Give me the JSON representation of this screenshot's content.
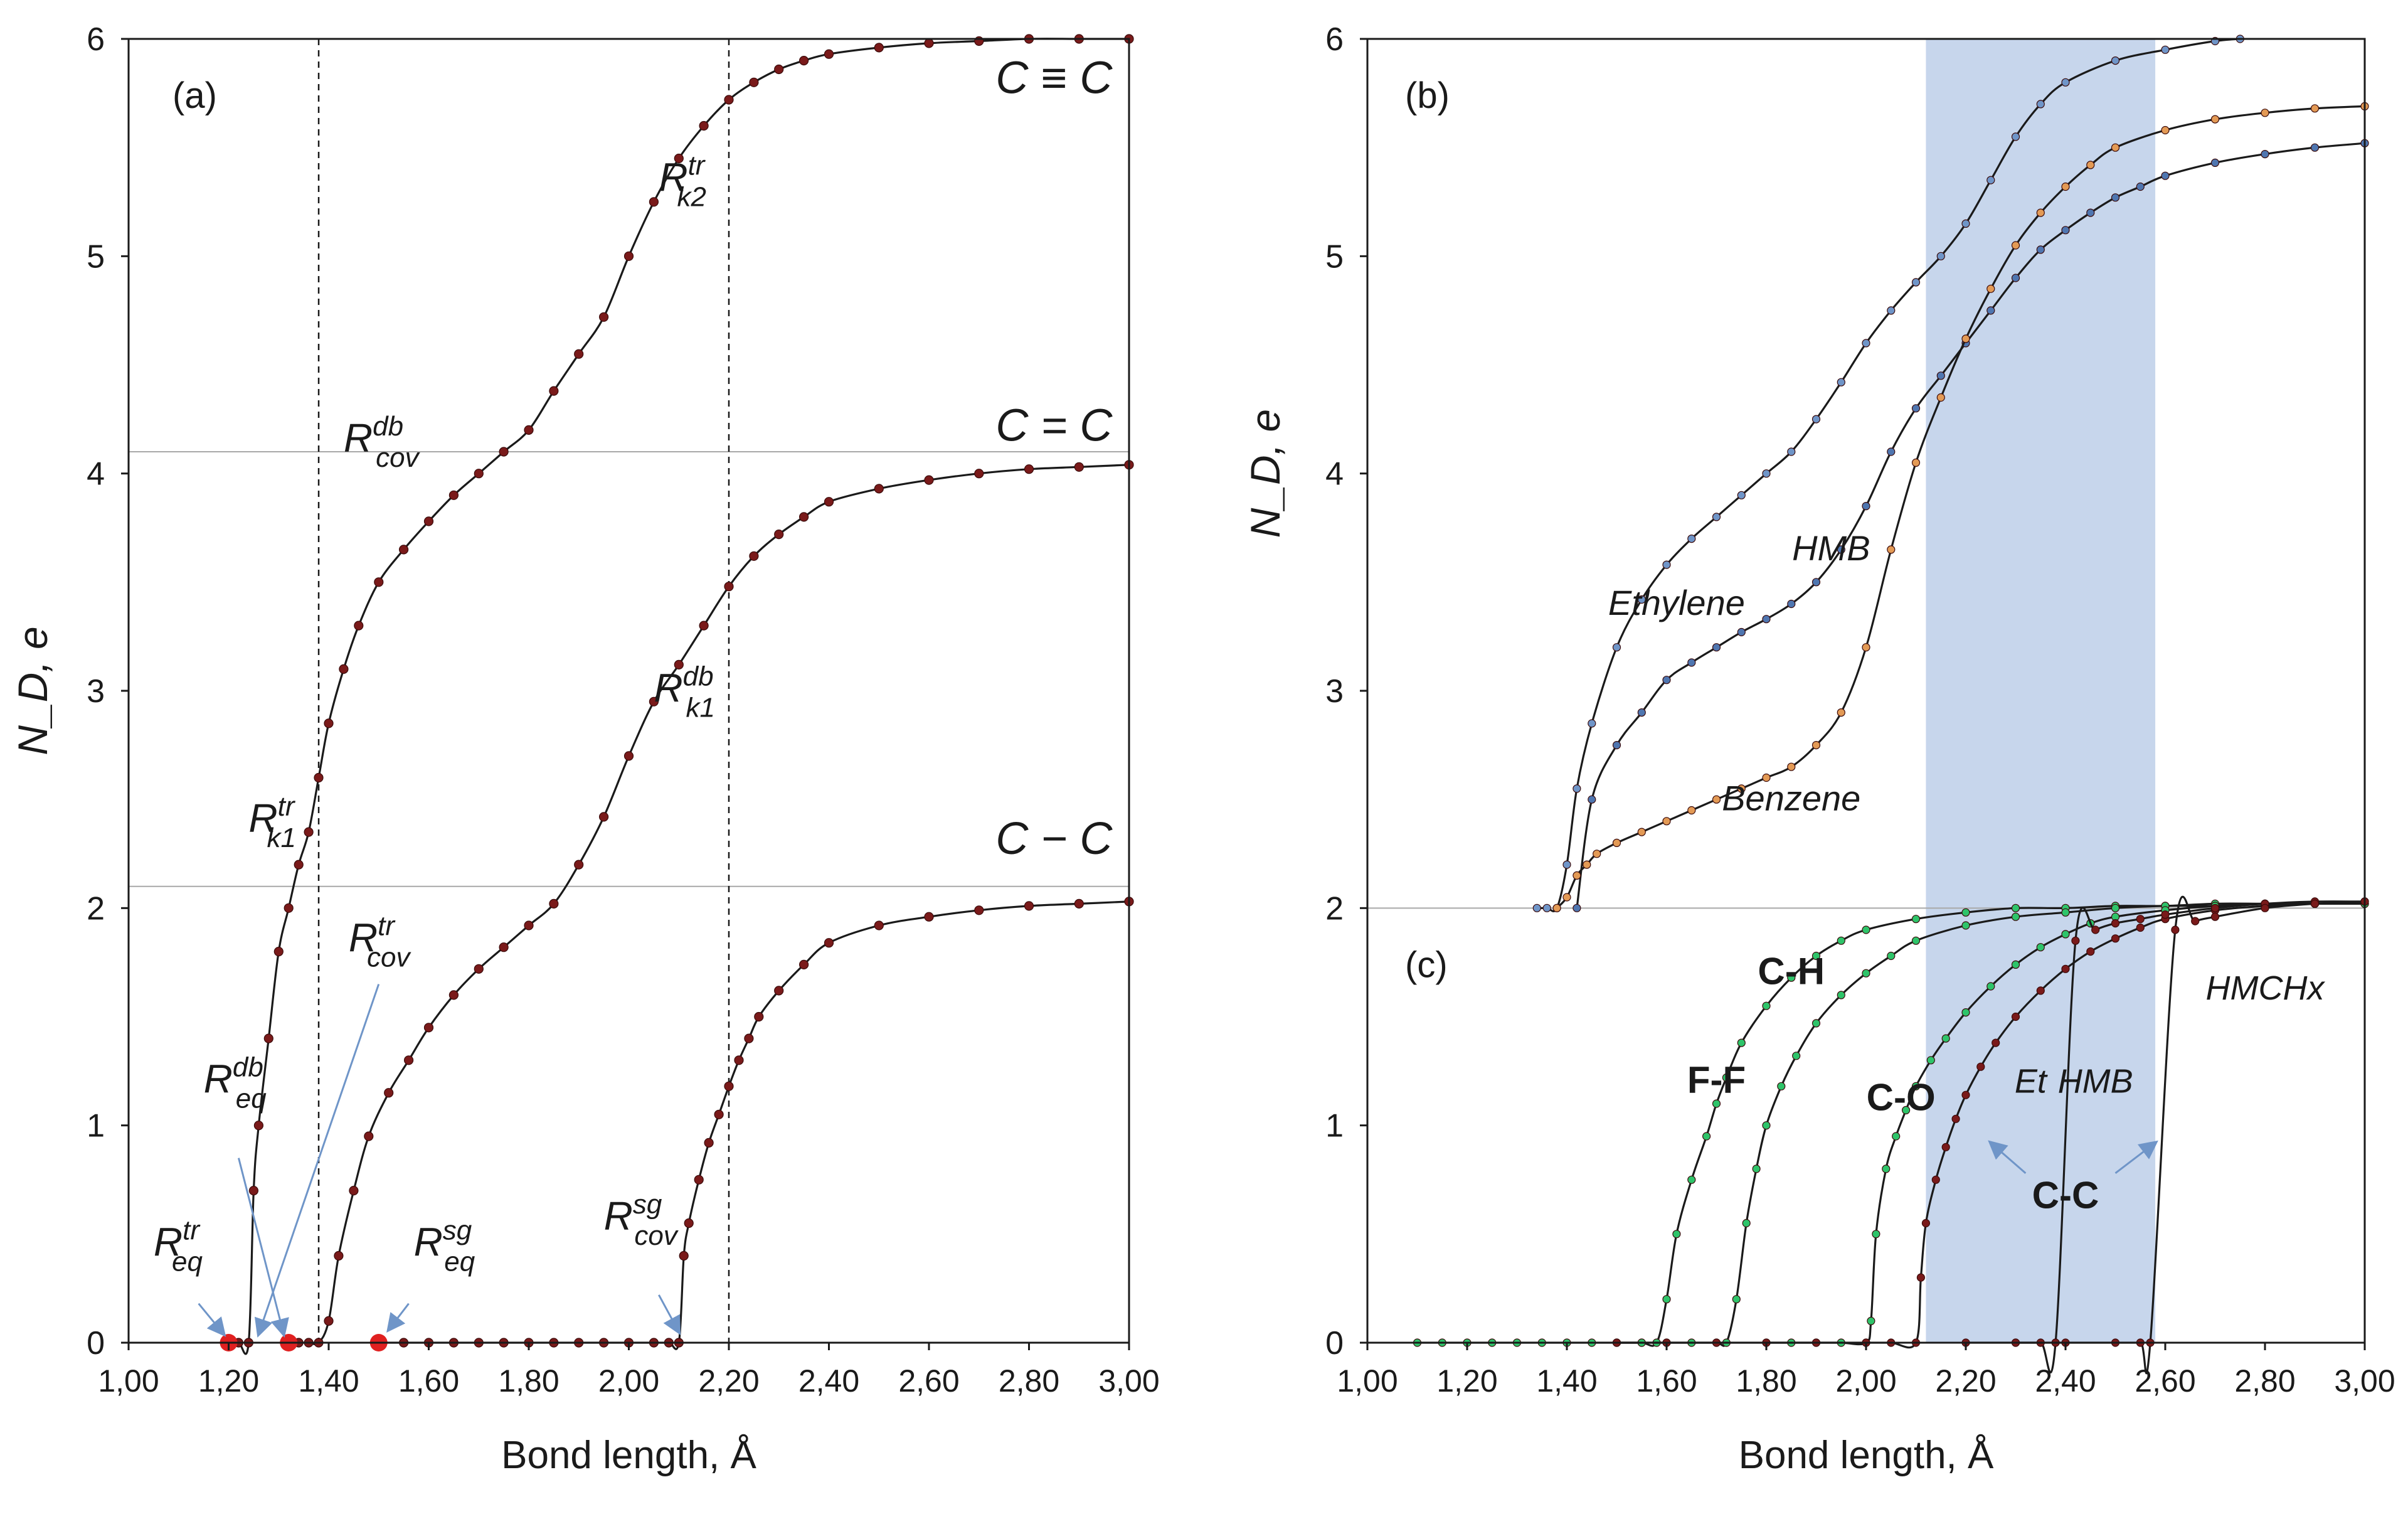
{
  "colors": {
    "curve": "#1a1a1a",
    "marker_dark_red": "#7a1a1a",
    "marker_red": "#e02020",
    "marker_orange": "#e39a55",
    "marker_blue": "#4f76b0",
    "marker_light_blue": "#6f95c8",
    "marker_green": "#2ec46a",
    "shade": "#c7d6ec",
    "guide": "#a8a8a8"
  },
  "chart_data": [
    {
      "id": "a",
      "type": "line",
      "panel_label": "(a)",
      "xlabel": "Bond length, Å",
      "ylabel": "N_D, e",
      "xlim": [
        1.0,
        3.0
      ],
      "ylim": [
        0,
        6
      ],
      "x_ticks": [
        "1,00",
        "1,20",
        "1,40",
        "1,60",
        "1,80",
        "2,00",
        "2,20",
        "2,40",
        "2,60",
        "2,80",
        "3,00"
      ],
      "y_ticks": [
        "0",
        "1",
        "2",
        "3",
        "4",
        "5",
        "6"
      ],
      "grid": false,
      "reference_lines": {
        "horizontal_y": [
          2.1,
          4.1
        ],
        "vertical_x": [
          1.38,
          2.2
        ]
      },
      "series": [
        {
          "name": "C ≡ C",
          "x": [
            1.2,
            1.22,
            1.24,
            1.25,
            1.26,
            1.28,
            1.3,
            1.32,
            1.34,
            1.36,
            1.38,
            1.4,
            1.43,
            1.46,
            1.5,
            1.55,
            1.6,
            1.65,
            1.7,
            1.75,
            1.8,
            1.85,
            1.9,
            1.95,
            2.0,
            2.05,
            2.1,
            2.15,
            2.2,
            2.25,
            2.3,
            2.35,
            2.4,
            2.5,
            2.6,
            2.7,
            2.8,
            2.9,
            3.0
          ],
          "y": [
            0,
            0,
            0,
            0.7,
            1.0,
            1.4,
            1.8,
            2.0,
            2.2,
            2.35,
            2.6,
            2.85,
            3.1,
            3.3,
            3.5,
            3.65,
            3.78,
            3.9,
            4.0,
            4.1,
            4.2,
            4.38,
            4.55,
            4.72,
            5.0,
            5.25,
            5.45,
            5.6,
            5.72,
            5.8,
            5.86,
            5.9,
            5.93,
            5.96,
            5.98,
            5.99,
            6.0,
            6.0,
            6.0
          ]
        },
        {
          "name": "C = C",
          "x": [
            1.32,
            1.34,
            1.36,
            1.38,
            1.4,
            1.42,
            1.45,
            1.48,
            1.52,
            1.56,
            1.6,
            1.65,
            1.7,
            1.75,
            1.8,
            1.85,
            1.9,
            1.95,
            2.0,
            2.05,
            2.1,
            2.15,
            2.2,
            2.25,
            2.3,
            2.35,
            2.4,
            2.5,
            2.6,
            2.7,
            2.8,
            2.9,
            3.0
          ],
          "y": [
            0,
            0,
            0,
            0,
            0.1,
            0.4,
            0.7,
            0.95,
            1.15,
            1.3,
            1.45,
            1.6,
            1.72,
            1.82,
            1.92,
            2.02,
            2.2,
            2.42,
            2.7,
            2.95,
            3.12,
            3.3,
            3.48,
            3.62,
            3.72,
            3.8,
            3.87,
            3.93,
            3.97,
            4.0,
            4.02,
            4.03,
            4.04
          ]
        },
        {
          "name": "C − C",
          "x": [
            1.5,
            1.55,
            1.6,
            1.65,
            1.7,
            1.75,
            1.8,
            1.85,
            1.9,
            1.95,
            2.0,
            2.05,
            2.08,
            2.1,
            2.11,
            2.12,
            2.14,
            2.16,
            2.18,
            2.2,
            2.22,
            2.24,
            2.26,
            2.3,
            2.35,
            2.4,
            2.5,
            2.6,
            2.7,
            2.8,
            2.9,
            3.0
          ],
          "y": [
            0,
            0,
            0,
            0,
            0,
            0,
            0,
            0,
            0,
            0,
            0,
            0,
            0,
            0,
            0.4,
            0.55,
            0.75,
            0.92,
            1.05,
            1.18,
            1.3,
            1.4,
            1.5,
            1.62,
            1.74,
            1.84,
            1.92,
            1.96,
            1.99,
            2.01,
            2.02,
            2.03
          ]
        }
      ],
      "highlight_points": {
        "x": [
          1.2,
          1.32,
          1.5
        ],
        "y": [
          0,
          0,
          0
        ]
      },
      "annotations": [
        {
          "text": "C ≡ C",
          "x": 2.85,
          "y": 5.75
        },
        {
          "text": "C = C",
          "x": 2.85,
          "y": 4.15
        },
        {
          "text": "C − C",
          "x": 2.85,
          "y": 2.25
        },
        {
          "text": "R",
          "sup": "tr",
          "sub": "k2",
          "x": 2.06,
          "y": 5.3
        },
        {
          "text": "R",
          "sup": "db",
          "sub": "cov",
          "x": 1.43,
          "y": 4.1
        },
        {
          "text": "R",
          "sup": "db",
          "sub": "k1",
          "x": 2.05,
          "y": 2.95
        },
        {
          "text": "R",
          "sup": "tr",
          "sub": "k1",
          "x": 1.24,
          "y": 2.35
        },
        {
          "text": "R",
          "sup": "tr",
          "sub": "cov",
          "x": 1.44,
          "y": 1.8
        },
        {
          "text": "R",
          "sup": "db",
          "sub": "eq",
          "x": 1.15,
          "y": 1.15
        },
        {
          "text": "R",
          "sup": "tr",
          "sub": "eq",
          "x": 1.05,
          "y": 0.4
        },
        {
          "text": "R",
          "sup": "sg",
          "sub": "eq",
          "x": 1.57,
          "y": 0.4
        },
        {
          "text": "R",
          "sup": "sg",
          "sub": "cov",
          "x": 1.95,
          "y": 0.52
        }
      ]
    },
    {
      "id": "b",
      "type": "line",
      "panel_label": "(b)",
      "xlabel": "",
      "ylabel": "N_D, e",
      "xlim": [
        1.0,
        3.0
      ],
      "ylim": [
        2,
        6
      ],
      "y_ticks": [
        "2",
        "3",
        "4",
        "5",
        "6"
      ],
      "shaded_x_range": [
        2.12,
        2.58
      ],
      "series": [
        {
          "name": "Ethylene",
          "x": [
            1.34,
            1.36,
            1.38,
            1.4,
            1.42,
            1.45,
            1.5,
            1.55,
            1.6,
            1.65,
            1.7,
            1.75,
            1.8,
            1.85,
            1.9,
            1.95,
            2.0,
            2.05,
            2.1,
            2.15,
            2.2,
            2.25,
            2.3,
            2.35,
            2.4,
            2.5,
            2.6,
            2.7,
            2.75
          ],
          "y": [
            2.0,
            2.0,
            2.0,
            2.2,
            2.55,
            2.85,
            3.2,
            3.42,
            3.58,
            3.7,
            3.8,
            3.9,
            4.0,
            4.1,
            4.25,
            4.42,
            4.6,
            4.75,
            4.88,
            5.0,
            5.15,
            5.35,
            5.55,
            5.7,
            5.8,
            5.9,
            5.95,
            5.99,
            6.0
          ]
        },
        {
          "name": "HMB",
          "x": [
            1.42,
            1.45,
            1.5,
            1.55,
            1.6,
            1.65,
            1.7,
            1.75,
            1.8,
            1.85,
            1.9,
            1.95,
            2.0,
            2.05,
            2.1,
            2.15,
            2.2,
            2.25,
            2.3,
            2.35,
            2.4,
            2.45,
            2.5,
            2.55,
            2.6,
            2.7,
            2.8,
            2.9,
            3.0
          ],
          "y": [
            2.0,
            2.5,
            2.75,
            2.9,
            3.05,
            3.13,
            3.2,
            3.27,
            3.33,
            3.4,
            3.5,
            3.65,
            3.85,
            4.1,
            4.3,
            4.45,
            4.6,
            4.75,
            4.9,
            5.03,
            5.12,
            5.2,
            5.27,
            5.32,
            5.37,
            5.43,
            5.47,
            5.5,
            5.52
          ]
        },
        {
          "name": "Benzene",
          "x": [
            1.38,
            1.4,
            1.42,
            1.44,
            1.46,
            1.5,
            1.55,
            1.6,
            1.65,
            1.7,
            1.75,
            1.8,
            1.85,
            1.9,
            1.95,
            2.0,
            2.05,
            2.1,
            2.15,
            2.2,
            2.25,
            2.3,
            2.35,
            2.4,
            2.45,
            2.5,
            2.6,
            2.7,
            2.8,
            2.9,
            3.0
          ],
          "y": [
            2.0,
            2.05,
            2.15,
            2.2,
            2.25,
            2.3,
            2.35,
            2.4,
            2.45,
            2.5,
            2.55,
            2.6,
            2.65,
            2.75,
            2.9,
            3.2,
            3.65,
            4.05,
            4.35,
            4.62,
            4.85,
            5.05,
            5.2,
            5.32,
            5.42,
            5.5,
            5.58,
            5.63,
            5.66,
            5.68,
            5.69
          ]
        }
      ],
      "annotations": [
        {
          "text": "Ethylene",
          "x": 1.62,
          "y": 3.35
        },
        {
          "text": "HMB",
          "x": 1.93,
          "y": 3.6
        },
        {
          "text": "Benzene",
          "x": 1.85,
          "y": 2.45
        }
      ]
    },
    {
      "id": "c",
      "type": "line",
      "panel_label": "(c)",
      "xlabel": "Bond length, Å",
      "ylabel": "",
      "xlim": [
        1.0,
        3.0
      ],
      "ylim": [
        0,
        2
      ],
      "x_ticks": [
        "1,00",
        "1,20",
        "1,40",
        "1,60",
        "1,80",
        "2,00",
        "2,20",
        "2,40",
        "2,60",
        "2,80",
        "3,00"
      ],
      "y_ticks": [
        "0",
        "1"
      ],
      "shaded_x_range": [
        2.12,
        2.58
      ],
      "series": [
        {
          "name": "F-F",
          "x": [
            1.1,
            1.15,
            1.2,
            1.25,
            1.3,
            1.35,
            1.4,
            1.45,
            1.5,
            1.55,
            1.58,
            1.6,
            1.62,
            1.65,
            1.68,
            1.7,
            1.72,
            1.75,
            1.8,
            1.85,
            1.9,
            1.95,
            2.0,
            2.1,
            2.2,
            2.3,
            2.4,
            2.5,
            2.6,
            2.7,
            2.8,
            2.9,
            3.0
          ],
          "y": [
            0,
            0,
            0,
            0,
            0,
            0,
            0,
            0,
            0,
            0,
            0,
            0.2,
            0.5,
            0.75,
            0.95,
            1.1,
            1.22,
            1.38,
            1.55,
            1.68,
            1.78,
            1.85,
            1.9,
            1.95,
            1.98,
            2.0,
            2.0,
            2.01,
            2.01,
            2.02,
            2.02,
            2.02,
            2.02
          ]
        },
        {
          "name": "C-H",
          "x": [
            1.5,
            1.55,
            1.6,
            1.65,
            1.7,
            1.72,
            1.74,
            1.76,
            1.78,
            1.8,
            1.83,
            1.86,
            1.9,
            1.95,
            2.0,
            2.05,
            2.1,
            2.2,
            2.3,
            2.4,
            2.5,
            2.6,
            2.7,
            2.8,
            2.9,
            3.0
          ],
          "y": [
            0,
            0,
            0,
            0,
            0,
            0,
            0.2,
            0.55,
            0.8,
            1.0,
            1.18,
            1.32,
            1.47,
            1.6,
            1.7,
            1.78,
            1.85,
            1.92,
            1.96,
            1.98,
            2.0,
            2.01,
            2.01,
            2.02,
            2.02,
            2.02
          ]
        },
        {
          "name": "C-O",
          "x": [
            1.8,
            1.85,
            1.9,
            1.95,
            2.0,
            2.01,
            2.02,
            2.04,
            2.06,
            2.08,
            2.1,
            2.13,
            2.16,
            2.2,
            2.25,
            2.3,
            2.35,
            2.4,
            2.45,
            2.5,
            2.6,
            2.7,
            2.8,
            2.9,
            3.0
          ],
          "y": [
            0,
            0,
            0,
            0,
            0,
            0.1,
            0.5,
            0.8,
            0.95,
            1.07,
            1.18,
            1.3,
            1.4,
            1.52,
            1.64,
            1.74,
            1.82,
            1.88,
            1.93,
            1.96,
            1.99,
            2.01,
            2.02,
            2.02,
            2.02
          ]
        },
        {
          "name": "Et",
          "x": [
            1.5,
            1.6,
            1.7,
            1.8,
            1.9,
            2.0,
            2.05,
            2.1,
            2.11,
            2.12,
            2.14,
            2.16,
            2.18,
            2.2,
            2.23,
            2.26,
            2.3,
            2.35,
            2.4,
            2.45,
            2.5,
            2.55,
            2.6,
            2.7,
            2.8,
            2.9,
            3.0
          ],
          "y": [
            0,
            0,
            0,
            0,
            0,
            0,
            0,
            0,
            0.3,
            0.55,
            0.75,
            0.9,
            1.03,
            1.14,
            1.27,
            1.38,
            1.5,
            1.62,
            1.72,
            1.8,
            1.86,
            1.91,
            1.95,
            1.99,
            2.01,
            2.02,
            2.03
          ]
        },
        {
          "name": "HMB",
          "x": [
            2.2,
            2.3,
            2.35,
            2.38,
            2.42,
            2.46,
            2.5,
            2.55,
            2.6,
            2.7,
            2.8,
            2.9,
            3.0
          ],
          "y": [
            0,
            0,
            0,
            0,
            1.85,
            1.9,
            1.93,
            1.95,
            1.97,
            2.0,
            2.02,
            2.03,
            2.03
          ]
        },
        {
          "name": "HMCHx",
          "x": [
            2.3,
            2.4,
            2.5,
            2.55,
            2.57,
            2.62,
            2.66,
            2.7,
            2.8,
            2.9,
            3.0
          ],
          "y": [
            0,
            0,
            0,
            0,
            0,
            1.9,
            1.94,
            1.96,
            2.0,
            2.02,
            2.03
          ]
        }
      ],
      "annotations": [
        {
          "text": "F-F",
          "x": 1.7,
          "y": 1.15
        },
        {
          "text": "C-H",
          "x": 1.85,
          "y": 1.65
        },
        {
          "text": "C-O",
          "x": 2.07,
          "y": 1.07
        },
        {
          "text": "Et",
          "x": 2.33,
          "y": 1.15
        },
        {
          "text": "HMB",
          "x": 2.46,
          "y": 1.15
        },
        {
          "text": "HMCHx",
          "x": 2.8,
          "y": 1.58
        },
        {
          "text": "C-C",
          "x": 2.4,
          "y": 0.62
        }
      ]
    }
  ]
}
